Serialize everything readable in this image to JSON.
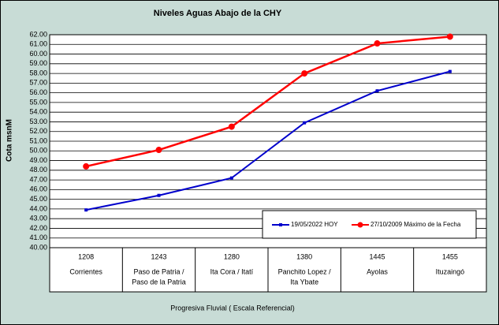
{
  "chart_data": {
    "type": "line",
    "title": "Niveles Aguas Abajo de la CHY",
    "y_label": "Cota msnM",
    "x_label": "Progresiva Fluvial ( Escala Referencial)",
    "categories": [
      "1208",
      "1243",
      "1280",
      "1380",
      "1445",
      "1455"
    ],
    "category_places": [
      [
        "Corrientes"
      ],
      [
        "Paso de Patria /",
        "Paso de la Patria"
      ],
      [
        "Ita Cora / Itatí"
      ],
      [
        "Panchito Lopez /",
        "Ita Ybate"
      ],
      [
        "Ayolas"
      ],
      [
        "Ituzaingó"
      ]
    ],
    "series": [
      {
        "name": "19/05/2022  HOY",
        "color": "#0000cc",
        "values": [
          43.9,
          45.4,
          47.2,
          52.9,
          56.2,
          58.2
        ]
      },
      {
        "name": "27/10/2009  Máximo de la Fecha",
        "color": "#ff0000",
        "values": [
          48.4,
          50.1,
          52.5,
          58.0,
          61.1,
          61.8
        ]
      }
    ],
    "ylim": [
      40,
      62
    ],
    "yticks": [
      {
        "value": 40,
        "label": "40.00"
      },
      {
        "value": 41,
        "label": "41.00"
      },
      {
        "value": 42,
        "label": "42.00"
      },
      {
        "value": 43,
        "label": "43.00"
      },
      {
        "value": 44,
        "label": "44.00"
      },
      {
        "value": 45,
        "label": "45.00"
      },
      {
        "value": 46,
        "label": "46.00"
      },
      {
        "value": 47,
        "label": "47.00"
      },
      {
        "value": 48,
        "label": "48.00"
      },
      {
        "value": 49,
        "label": "49.00"
      },
      {
        "value": 50,
        "label": "50.00"
      },
      {
        "value": 51,
        "label": "51.00"
      },
      {
        "value": 52,
        "label": "52.00"
      },
      {
        "value": 53,
        "label": "53.00"
      },
      {
        "value": 54,
        "label": "54.00"
      },
      {
        "value": 55,
        "label": "55.00"
      },
      {
        "value": 56,
        "label": "56.00"
      },
      {
        "value": 57,
        "label": "57.00"
      },
      {
        "value": 58,
        "label": "58.00"
      },
      {
        "value": 59,
        "label": "59.00"
      },
      {
        "value": 60,
        "label": "60.00"
      },
      {
        "value": 61,
        "label": "61.00"
      },
      {
        "value": 62,
        "label": "62.00"
      }
    ],
    "grid": true
  }
}
